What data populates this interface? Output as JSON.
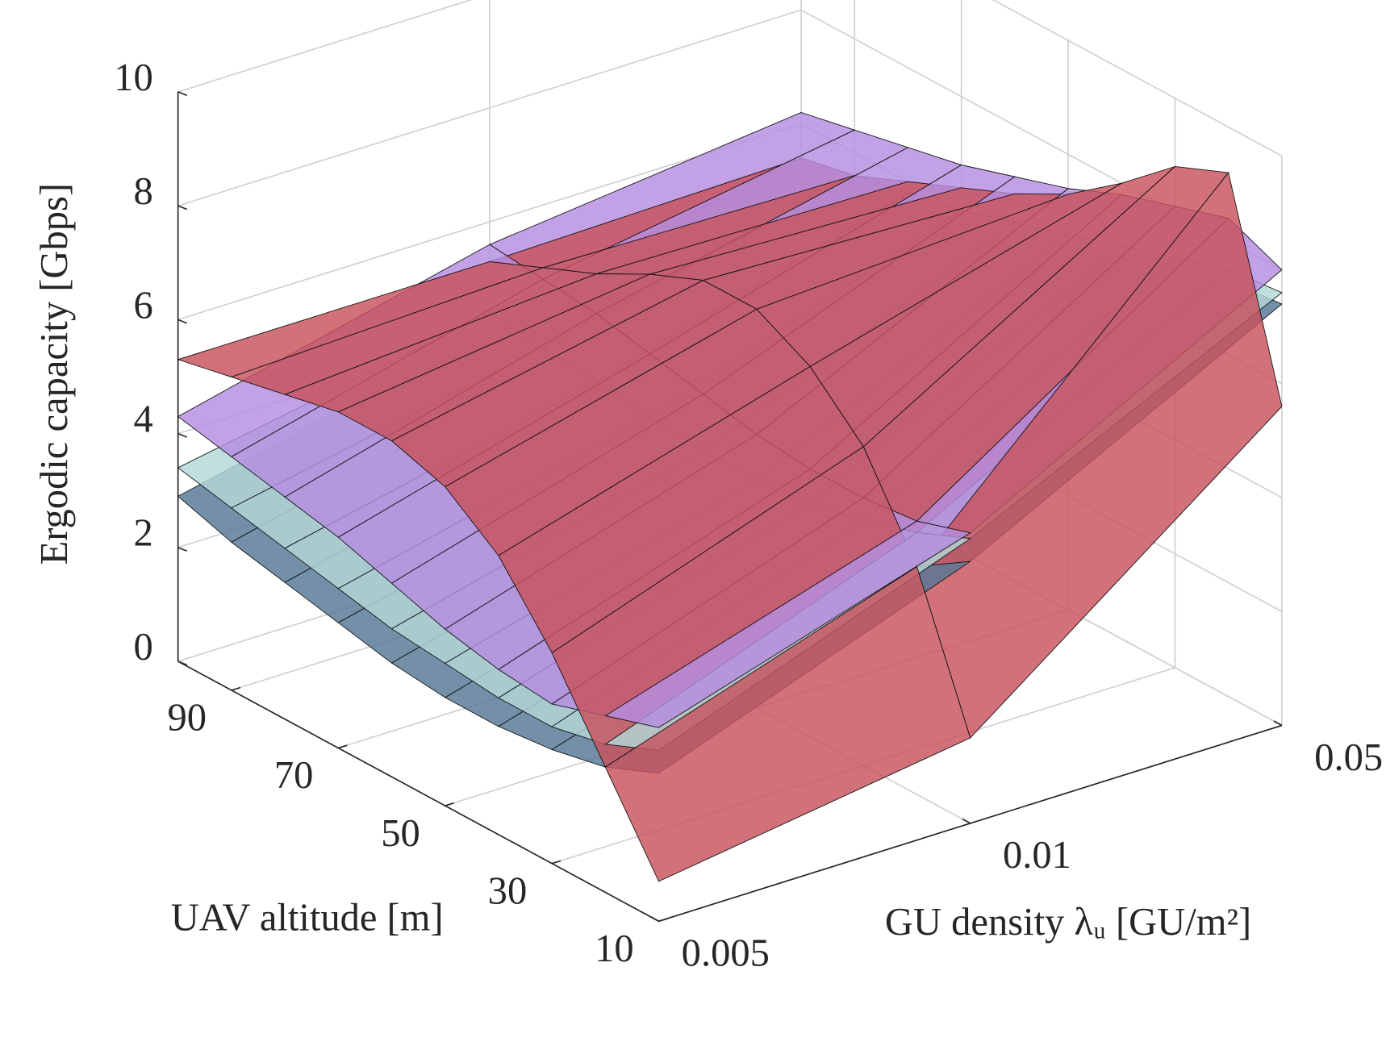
{
  "chart_data": {
    "type": "surface",
    "zlabel": "Ergodic capacity [Gbps]",
    "ylabel": "UAV altitude [m]",
    "xlabel": "GU density λᵤ [GU/m²]",
    "categories": [
      "0.005",
      "0.01",
      "0.05"
    ],
    "y": [
      10,
      20,
      30,
      40,
      50,
      60,
      70,
      80,
      90,
      100
    ],
    "ylim": [
      10,
      100
    ],
    "yticks": [
      10,
      30,
      50,
      70,
      90
    ],
    "zlim": [
      0,
      10
    ],
    "zticks": [
      0,
      2,
      4,
      6,
      8,
      10
    ],
    "grid": true,
    "series": [
      {
        "color": "#557896",
        "values": [
          [
            2.6,
            4.6,
            7.4
          ],
          [
            2.2,
            4.0,
            7.3
          ],
          [
            2.0,
            3.7,
            7.0
          ],
          [
            1.9,
            3.5,
            6.7
          ],
          [
            1.9,
            3.4,
            6.4
          ],
          [
            2.0,
            3.4,
            6.1
          ],
          [
            2.2,
            3.5,
            5.8
          ],
          [
            2.4,
            3.7,
            5.6
          ],
          [
            2.6,
            3.9,
            5.4
          ],
          [
            2.9,
            4.1,
            5.2
          ]
        ]
      },
      {
        "color": "#b4d8d8",
        "values": [
          [
            3.0,
            5.0,
            7.6
          ],
          [
            2.6,
            4.6,
            7.5
          ],
          [
            2.4,
            4.3,
            7.2
          ],
          [
            2.4,
            4.1,
            6.9
          ],
          [
            2.5,
            4.0,
            6.6
          ],
          [
            2.6,
            4.0,
            6.3
          ],
          [
            2.8,
            4.1,
            6.0
          ],
          [
            3.0,
            4.2,
            5.8
          ],
          [
            3.2,
            4.3,
            5.6
          ],
          [
            3.4,
            4.4,
            5.4
          ]
        ]
      },
      {
        "color": "#b48ce0",
        "values": [
          [
            3.4,
            5.1,
            8.0
          ],
          [
            3.1,
            4.8,
            8.4
          ],
          [
            2.8,
            4.7,
            8.1
          ],
          [
            2.9,
            4.7,
            7.8
          ],
          [
            3.1,
            4.8,
            7.4
          ],
          [
            3.4,
            5.0,
            7.1
          ],
          [
            3.7,
            5.2,
            6.8
          ],
          [
            3.9,
            5.4,
            6.6
          ],
          [
            4.1,
            5.5,
            6.4
          ],
          [
            4.3,
            5.6,
            6.2
          ]
        ]
      },
      {
        "color": "#c8525c",
        "values": [
          [
            0.7,
            1.5,
            5.6
          ],
          [
            2.2,
            4.0,
            9.2
          ],
          [
            3.7,
            5.6,
            8.8
          ],
          [
            4.9,
            6.5,
            8.0
          ],
          [
            5.6,
            7.0,
            7.3
          ],
          [
            5.9,
            7.0,
            6.8
          ],
          [
            5.9,
            6.6,
            6.4
          ],
          [
            5.7,
            6.1,
            6.0
          ],
          [
            5.5,
            5.7,
            5.6
          ],
          [
            5.3,
            5.3,
            5.4
          ]
        ]
      }
    ]
  }
}
